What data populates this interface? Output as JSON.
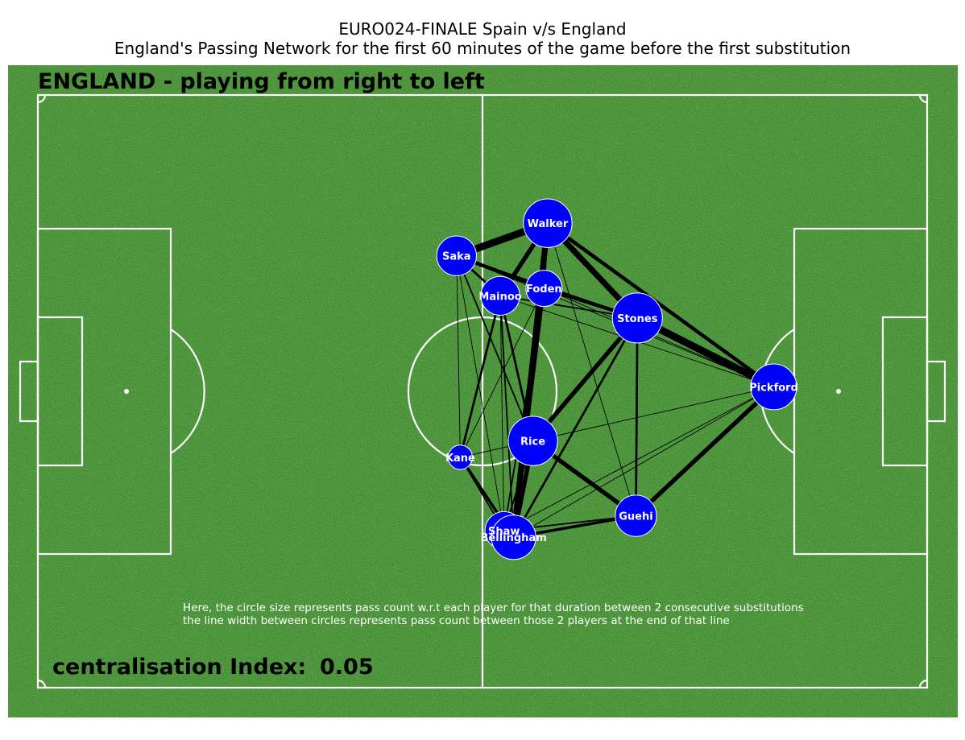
{
  "header": {
    "title": "EURO024-FINALE Spain v/s England",
    "subtitle": "England's Passing Network for the first 60 minutes of the game before the first substitution"
  },
  "pitch": {
    "team_heading": "ENGLAND - playing from right to left",
    "note_line1": "Here, the circle size represents pass count w.r.t each player for that duration between 2 consecutive substitutions",
    "note_line2": "the line width between circles represents pass count between those 2 players at the end of that line",
    "centralisation_label": "centralisation Index:",
    "centralisation_value": "0.05",
    "colors": {
      "grass": "#3f8a2f",
      "lines": "#ffffff",
      "node": "#0000ff",
      "edge": "#000000"
    }
  },
  "chart_data": {
    "type": "network",
    "x_range": [
      0,
      120
    ],
    "y_range": [
      0,
      80
    ],
    "nodes": [
      {
        "name": "Walker",
        "x": 68.8,
        "y": 62.7,
        "passes": 36
      },
      {
        "name": "Saka",
        "x": 56.5,
        "y": 58.3,
        "passes": 24
      },
      {
        "name": "Foden",
        "x": 68.3,
        "y": 53.9,
        "passes": 20
      },
      {
        "name": "Mainoo",
        "x": 62.4,
        "y": 52.9,
        "passes": 23
      },
      {
        "name": "Stones",
        "x": 80.9,
        "y": 49.9,
        "passes": 38
      },
      {
        "name": "Pickford",
        "x": 99.3,
        "y": 40.6,
        "passes": 32
      },
      {
        "name": "Rice",
        "x": 66.8,
        "y": 33.3,
        "passes": 37
      },
      {
        "name": "Kane",
        "x": 57.0,
        "y": 31.1,
        "passes": 9
      },
      {
        "name": "Guehi",
        "x": 80.7,
        "y": 23.2,
        "passes": 26
      },
      {
        "name": "Shaw",
        "x": 62.9,
        "y": 21.2,
        "passes": 22
      },
      {
        "name": "Bellingham",
        "x": 64.2,
        "y": 20.3,
        "passes": 30
      }
    ],
    "edges": [
      {
        "a": "Walker",
        "b": "Saka",
        "count": 10
      },
      {
        "a": "Walker",
        "b": "Mainoo",
        "count": 6
      },
      {
        "a": "Walker",
        "b": "Foden",
        "count": 3
      },
      {
        "a": "Walker",
        "b": "Stones",
        "count": 8
      },
      {
        "a": "Walker",
        "b": "Pickford",
        "count": 5
      },
      {
        "a": "Walker",
        "b": "Bellingham",
        "count": 8
      },
      {
        "a": "Walker",
        "b": "Guehi",
        "count": 1
      },
      {
        "a": "Saka",
        "b": "Foden",
        "count": 5
      },
      {
        "a": "Saka",
        "b": "Stones",
        "count": 2
      },
      {
        "a": "Saka",
        "b": "Mainoo",
        "count": 3
      },
      {
        "a": "Saka",
        "b": "Kane",
        "count": 1
      },
      {
        "a": "Saka",
        "b": "Shaw",
        "count": 1
      },
      {
        "a": "Saka",
        "b": "Rice",
        "count": 2
      },
      {
        "a": "Saka",
        "b": "Pickford",
        "count": 1
      },
      {
        "a": "Foden",
        "b": "Stones",
        "count": 5
      },
      {
        "a": "Foden",
        "b": "Bellingham",
        "count": 4
      },
      {
        "a": "Foden",
        "b": "Kane",
        "count": 1
      },
      {
        "a": "Foden",
        "b": "Shaw",
        "count": 2
      },
      {
        "a": "Foden",
        "b": "Pickford",
        "count": 1
      },
      {
        "a": "Mainoo",
        "b": "Stones",
        "count": 2
      },
      {
        "a": "Mainoo",
        "b": "Rice",
        "count": 3
      },
      {
        "a": "Mainoo",
        "b": "Kane",
        "count": 3
      },
      {
        "a": "Mainoo",
        "b": "Bellingham",
        "count": 2
      },
      {
        "a": "Mainoo",
        "b": "Shaw",
        "count": 1
      },
      {
        "a": "Mainoo",
        "b": "Pickford",
        "count": 1
      },
      {
        "a": "Stones",
        "b": "Pickford",
        "count": 10
      },
      {
        "a": "Stones",
        "b": "Rice",
        "count": 6
      },
      {
        "a": "Stones",
        "b": "Guehi",
        "count": 3
      },
      {
        "a": "Stones",
        "b": "Bellingham",
        "count": 3
      },
      {
        "a": "Pickford",
        "b": "Rice",
        "count": 1
      },
      {
        "a": "Pickford",
        "b": "Guehi",
        "count": 6
      },
      {
        "a": "Pickford",
        "b": "Bellingham",
        "count": 1
      },
      {
        "a": "Pickford",
        "b": "Shaw",
        "count": 1
      },
      {
        "a": "Rice",
        "b": "Guehi",
        "count": 6
      },
      {
        "a": "Rice",
        "b": "Bellingham",
        "count": 6
      },
      {
        "a": "Rice",
        "b": "Kane",
        "count": 1
      },
      {
        "a": "Rice",
        "b": "Shaw",
        "count": 2
      },
      {
        "a": "Kane",
        "b": "Bellingham",
        "count": 4
      },
      {
        "a": "Kane",
        "b": "Shaw",
        "count": 2
      },
      {
        "a": "Guehi",
        "b": "Bellingham",
        "count": 4
      },
      {
        "a": "Guehi",
        "b": "Shaw",
        "count": 2
      },
      {
        "a": "Shaw",
        "b": "Bellingham",
        "count": 2
      }
    ]
  }
}
